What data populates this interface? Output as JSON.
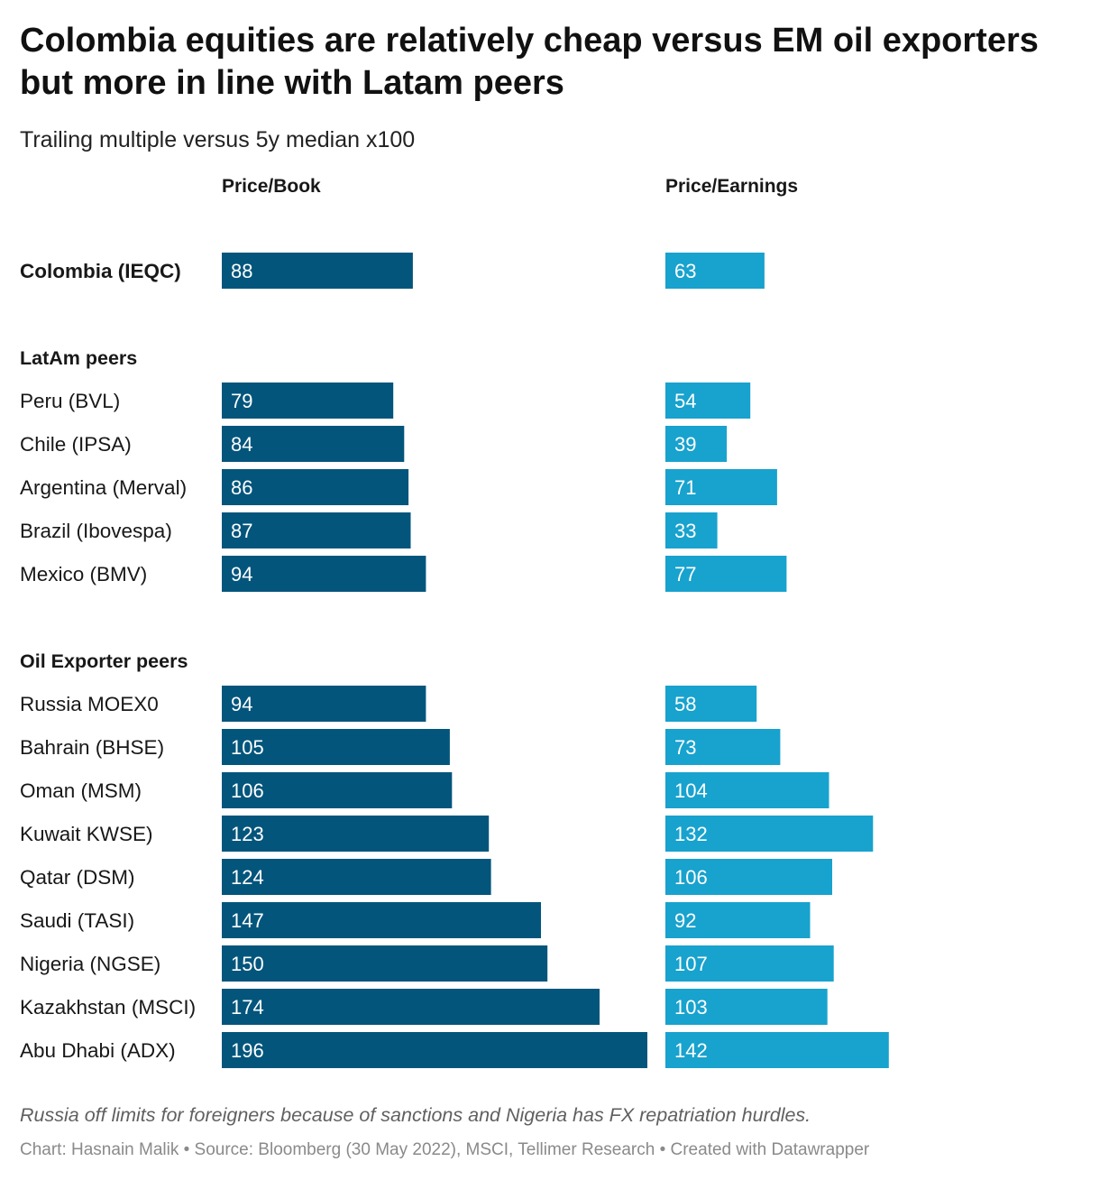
{
  "header": {
    "title": "Colombia equities are relatively cheap versus EM oil exporters but more in line with Latam peers",
    "subtitle": "Trailing multiple versus 5y median x100"
  },
  "footer": {
    "note": "Russia off limits for foreigners because of sanctions and Nigeria has FX repatriation hurdles.",
    "source": "Chart: Hasnain Malik • Source: Bloomberg (30 May 2022), MSCI, Tellimer Research • Created with Datawrapper"
  },
  "colors": {
    "pb_bar": "#03557c",
    "pe_bar": "#18a2ce"
  },
  "chart_data": {
    "type": "bar",
    "orientation": "horizontal",
    "title": "Colombia equities are relatively cheap versus EM oil exporters but more in line with Latam peers",
    "subtitle": "Trailing multiple versus 5y median x100",
    "series": [
      {
        "name": "Price/Book",
        "values": [
          88,
          79,
          84,
          86,
          87,
          94,
          94,
          105,
          106,
          123,
          124,
          147,
          150,
          174,
          196
        ]
      },
      {
        "name": "Price/Earnings",
        "values": [
          63,
          54,
          39,
          71,
          33,
          77,
          58,
          73,
          104,
          132,
          106,
          92,
          107,
          103,
          142
        ]
      }
    ],
    "categories": [
      "Colombia (IEQC)",
      "Peru (BVL)",
      "Chile (IPSA)",
      "Argentina (Merval)",
      "Brazil (Ibovespa)",
      "Mexico (BMV)",
      "Russia MOEX0",
      "Bahrain (BHSE)",
      "Oman (MSM)",
      "Kuwait KWSE)",
      "Qatar (DSM)",
      "Saudi (TASI)",
      "Nigeria (NGSE)",
      "Kazakhstan (MSCI)",
      "Abu Dhabi (ADX)"
    ],
    "groups": [
      {
        "label": "",
        "rows": [
          0
        ]
      },
      {
        "label": "LatAm peers",
        "rows": [
          1,
          2,
          3,
          4,
          5
        ]
      },
      {
        "label": "Oil Exporter peers",
        "rows": [
          6,
          7,
          8,
          9,
          10,
          11,
          12,
          13,
          14
        ]
      }
    ],
    "highlighted_categories": [
      "Colombia (IEQC)"
    ],
    "xlim": [
      0,
      196
    ]
  }
}
